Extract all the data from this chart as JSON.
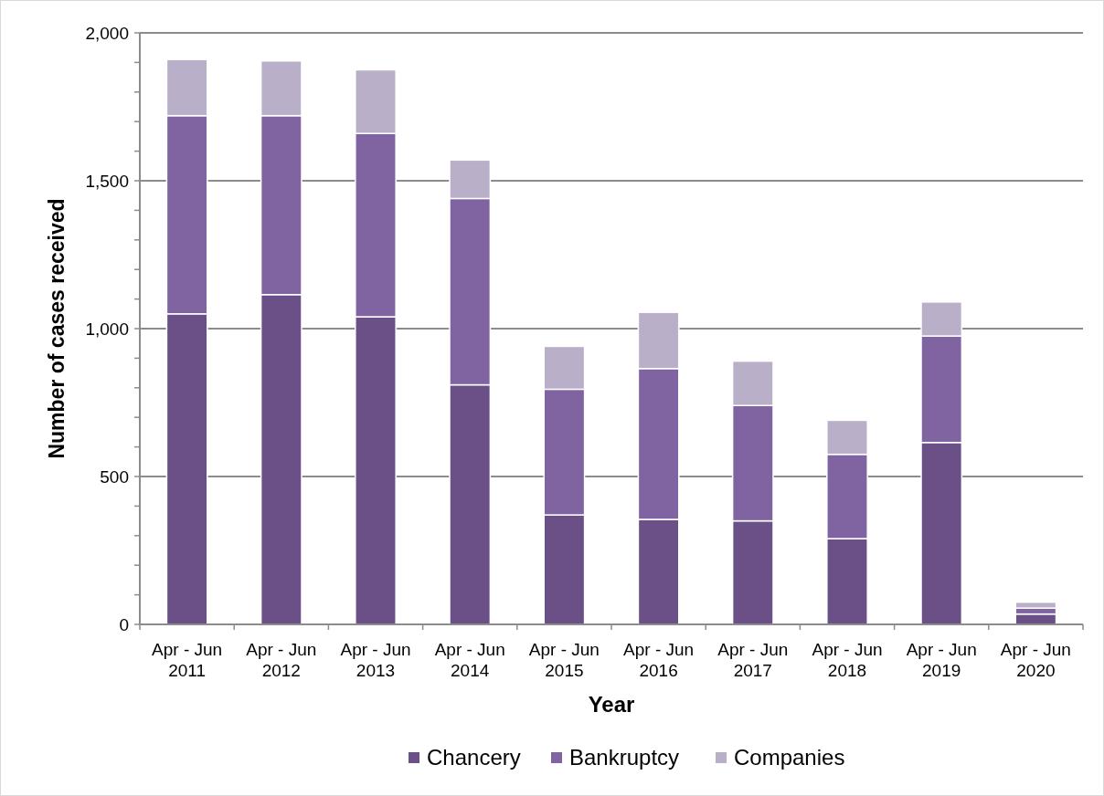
{
  "chart_data": {
    "type": "bar",
    "stacked": true,
    "xlabel": "Year",
    "ylabel": "Number of cases received",
    "categories": [
      "Apr - Jun 2011",
      "Apr - Jun 2012",
      "Apr - Jun 2013",
      "Apr - Jun 2014",
      "Apr - Jun 2015",
      "Apr - Jun 2016",
      "Apr - Jun 2017",
      "Apr - Jun 2018",
      "Apr - Jun 2019",
      "Apr - Jun 2020"
    ],
    "series": [
      {
        "name": "Chancery",
        "color": "#6a5087",
        "values": [
          1050,
          1115,
          1040,
          810,
          370,
          355,
          350,
          290,
          615,
          35
        ]
      },
      {
        "name": "Bankruptcy",
        "color": "#8064a2",
        "values": [
          670,
          605,
          620,
          630,
          425,
          510,
          390,
          285,
          360,
          20
        ]
      },
      {
        "name": "Companies",
        "color": "#b9afc9",
        "values": [
          190,
          185,
          215,
          130,
          145,
          190,
          150,
          115,
          115,
          20
        ]
      }
    ],
    "ylim": [
      0,
      2000
    ],
    "yticks": [
      0,
      {
        "value": 100,
        "label": null
      },
      {
        "value": 200,
        "label": null
      },
      {
        "value": 300,
        "label": null
      },
      {
        "value": 400,
        "label": null
      },
      {
        "value": 500,
        "label": "500"
      },
      {
        "value": 600,
        "label": null
      },
      {
        "value": 700,
        "label": null
      },
      {
        "value": 800,
        "label": null
      },
      {
        "value": 900,
        "label": null
      },
      {
        "value": 1000,
        "label": "1,000"
      },
      {
        "value": 1100,
        "label": null
      },
      {
        "value": 1200,
        "label": null
      },
      {
        "value": 1300,
        "label": null
      },
      {
        "value": 1400,
        "label": null
      },
      {
        "value": 1500,
        "label": "1,500"
      },
      {
        "value": 1600,
        "label": null
      },
      {
        "value": 1700,
        "label": null
      },
      {
        "value": 1800,
        "label": null
      },
      {
        "value": 1900,
        "label": null
      },
      {
        "value": 2000,
        "label": "2,000"
      }
    ],
    "grid": "y",
    "legend": "bottom"
  }
}
